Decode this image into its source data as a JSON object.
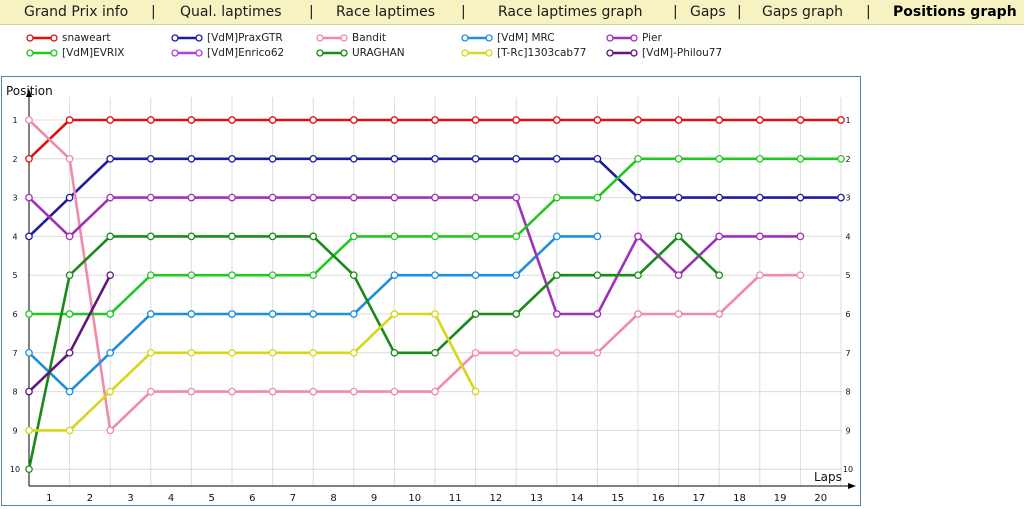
{
  "nav": {
    "tabs": [
      {
        "label": "Grand Prix info",
        "active": false
      },
      {
        "label": "Qual. laptimes",
        "active": false
      },
      {
        "label": "Race laptimes",
        "active": false
      },
      {
        "label": "Race laptimes graph",
        "active": false
      },
      {
        "label": "Gaps",
        "active": false
      },
      {
        "label": "Gaps graph",
        "active": false
      },
      {
        "label": "Positions graph",
        "active": true
      }
    ],
    "separator": "|"
  },
  "chart_data": {
    "type": "line",
    "title": "",
    "xlabel": "Laps",
    "ylabel": "Position",
    "x_ticks": [
      "1",
      "2",
      "3",
      "4",
      "5",
      "6",
      "7",
      "8",
      "9",
      "10",
      "11",
      "12",
      "13",
      "14",
      "15",
      "16",
      "17",
      "18",
      "19",
      "20"
    ],
    "y_ticks": [
      "1",
      "2",
      "3",
      "4",
      "5",
      "6",
      "7",
      "8",
      "9",
      "10"
    ],
    "xlim": [
      0,
      20
    ],
    "ylim": [
      1,
      10
    ],
    "y_inverted": true,
    "grid": true,
    "legend_position": "top",
    "series": [
      {
        "name": "snaweart",
        "color": "#e01010",
        "x": [
          0,
          1,
          2,
          3,
          4,
          5,
          6,
          7,
          8,
          9,
          10,
          11,
          12,
          13,
          14,
          15,
          16,
          17,
          18,
          19,
          20
        ],
        "y": [
          2,
          1,
          1,
          1,
          1,
          1,
          1,
          1,
          1,
          1,
          1,
          1,
          1,
          1,
          1,
          1,
          1,
          1,
          1,
          1,
          1
        ]
      },
      {
        "name": "[VdM]PraxGTR",
        "color": "#1c1ca0",
        "x": [
          0,
          1,
          2,
          3,
          4,
          5,
          6,
          7,
          8,
          9,
          10,
          11,
          12,
          13,
          14,
          15,
          16,
          17,
          18,
          19,
          20
        ],
        "y": [
          4,
          3,
          2,
          2,
          2,
          2,
          2,
          2,
          2,
          2,
          2,
          2,
          2,
          2,
          2,
          3,
          3,
          3,
          3,
          3,
          3
        ]
      },
      {
        "name": "Bandit",
        "color": "#ef8aa8",
        "x": [
          0,
          1,
          2,
          3,
          4,
          5,
          6,
          7,
          8,
          9,
          10,
          11,
          12,
          13,
          14,
          15,
          16,
          17,
          18,
          19
        ],
        "y": [
          1,
          2,
          9,
          8,
          8,
          8,
          8,
          8,
          8,
          8,
          8,
          7,
          7,
          7,
          7,
          6,
          6,
          6,
          5,
          5
        ]
      },
      {
        "name": "[VdM] MRC",
        "color": "#1e8fde",
        "x": [
          0,
          1,
          2,
          3,
          4,
          5,
          6,
          7,
          8,
          9,
          10,
          11,
          12,
          13,
          14
        ],
        "y": [
          7,
          8,
          7,
          6,
          6,
          6,
          6,
          6,
          6,
          5,
          5,
          5,
          5,
          4,
          4
        ]
      },
      {
        "name": "Pier",
        "color": "#a030b8",
        "x": [
          0,
          1,
          2,
          3,
          4,
          5,
          6,
          7,
          8,
          9,
          10,
          11,
          12,
          13,
          14,
          15,
          16,
          17,
          18,
          19
        ],
        "y": [
          3,
          4,
          3,
          3,
          3,
          3,
          3,
          3,
          3,
          3,
          3,
          3,
          3,
          6,
          6,
          4,
          5,
          4,
          4,
          4
        ]
      },
      {
        "name": "[VdM]EVRIX",
        "color": "#22c822",
        "x": [
          0,
          1,
          2,
          3,
          4,
          5,
          6,
          7,
          8,
          9,
          10,
          11,
          12,
          13,
          14,
          15,
          16,
          17,
          18,
          19,
          20
        ],
        "y": [
          6,
          6,
          6,
          5,
          5,
          5,
          5,
          5,
          4,
          4,
          4,
          4,
          4,
          3,
          3,
          2,
          2,
          2,
          2,
          2,
          2
        ]
      },
      {
        "name": "[VdM]Enrico62",
        "color": "#b040e0",
        "x": [],
        "y": []
      },
      {
        "name": "URAGHAN",
        "color": "#1a8a1a",
        "x": [
          0,
          1,
          2,
          3,
          4,
          5,
          6,
          7,
          8,
          9,
          10,
          11,
          12,
          13,
          14,
          15,
          16,
          17
        ],
        "y": [
          10,
          5,
          4,
          4,
          4,
          4,
          4,
          4,
          5,
          7,
          7,
          6,
          6,
          5,
          5,
          5,
          4,
          5
        ]
      },
      {
        "name": "[T-Rc]1303cab77",
        "color": "#d6d61c",
        "x": [
          0,
          1,
          2,
          3,
          4,
          5,
          6,
          7,
          8,
          9,
          10,
          11
        ],
        "y": [
          9,
          9,
          8,
          7,
          7,
          7,
          7,
          7,
          7,
          6,
          6,
          8
        ]
      },
      {
        "name": "[VdM]-Philou77",
        "color": "#62147a",
        "x": [
          0,
          1,
          2
        ],
        "y": [
          8,
          7,
          5
        ]
      }
    ]
  }
}
